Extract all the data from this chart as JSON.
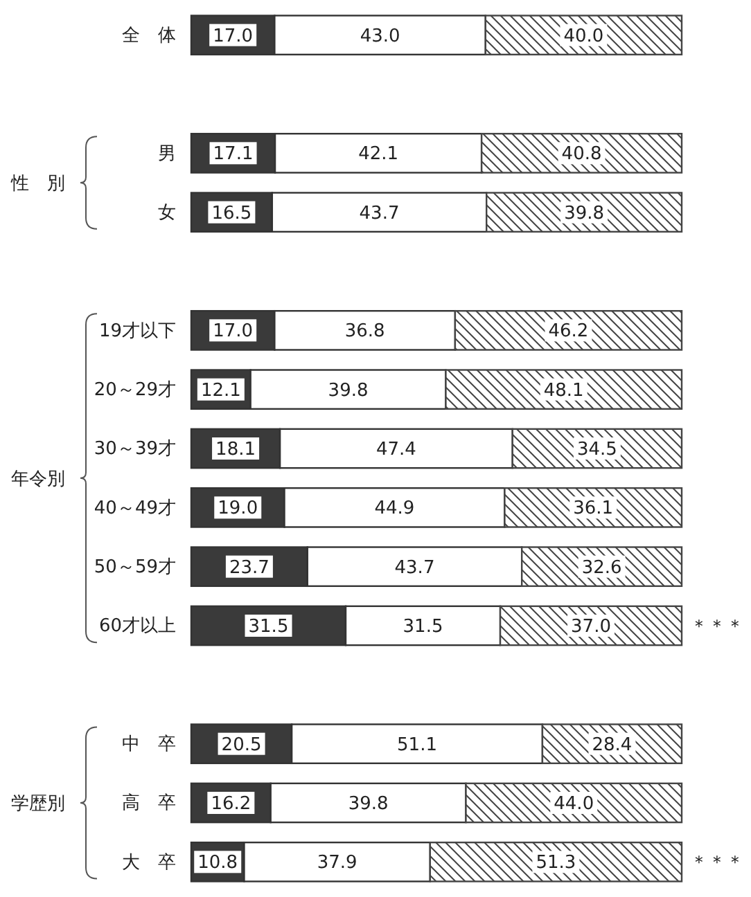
{
  "chart_data": {
    "type": "bar",
    "orientation": "horizontal",
    "stacked": true,
    "xlim": [
      0,
      100
    ],
    "categories": [
      "全　体",
      null,
      "男",
      "女",
      null,
      "19才以下",
      "20～29才",
      "30～39才",
      "40～49才",
      "50～59才",
      "60才以上",
      null,
      "中　卒",
      "高　卒",
      "大　卒"
    ],
    "series": [
      {
        "color": "#3a3a3a",
        "values": [
          17.0,
          null,
          17.1,
          16.5,
          null,
          17.0,
          12.1,
          18.1,
          19.0,
          23.7,
          31.5,
          null,
          20.5,
          16.2,
          10.8
        ],
        "value_labels": [
          "17.0",
          null,
          "17.1",
          "16.5",
          null,
          "17.0",
          "12.1",
          "18.1",
          "19.0",
          "23.7",
          "31.5",
          null,
          "20.5",
          "16.2",
          "10.8"
        ]
      },
      {
        "color": "#ffffff",
        "values": [
          43.0,
          null,
          42.1,
          43.7,
          null,
          36.8,
          39.8,
          47.4,
          44.9,
          43.7,
          31.5,
          null,
          51.1,
          39.8,
          37.9
        ],
        "value_labels": [
          "43.0",
          null,
          "42.1",
          "43.7",
          null,
          "36.8",
          "39.8",
          "47.4",
          "44.9",
          "43.7",
          "31.5",
          null,
          "51.1",
          "39.8",
          "37.9"
        ]
      },
      {
        "color": "#444444",
        "values": [
          40.0,
          null,
          40.8,
          39.8,
          null,
          46.2,
          48.1,
          34.5,
          36.1,
          32.6,
          37.0,
          null,
          28.4,
          44.0,
          51.3
        ],
        "value_labels": [
          "40.0",
          null,
          "40.8",
          "39.8",
          null,
          "46.2",
          "48.1",
          "34.5",
          "36.1",
          "32.6",
          "37.0",
          null,
          "28.4",
          "44.0",
          "51.3"
        ]
      }
    ],
    "annotations": [
      "性　別",
      "年令別",
      "学歴別",
      "＊＊＊",
      "＊＊＊"
    ]
  }
}
